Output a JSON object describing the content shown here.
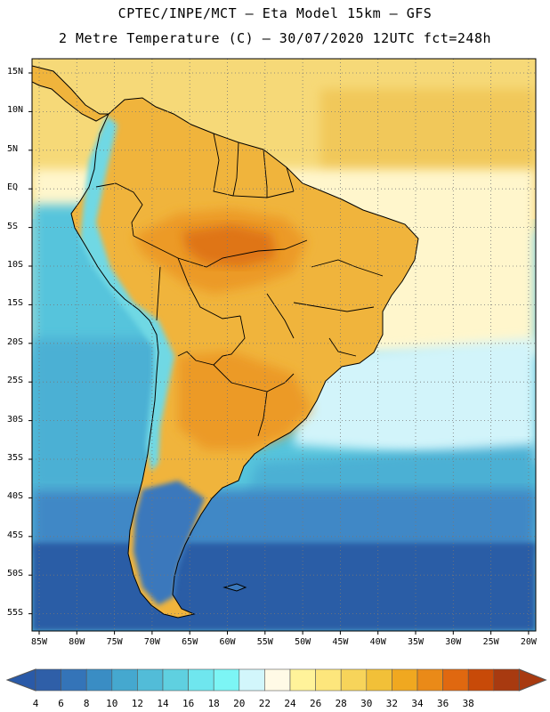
{
  "header": {
    "line1": "CPTEC/INPE/MCT –  Eta Model 15km – GFS",
    "line2": "2 Metre Temperature (C) – 30/07/2020 12UTC fct=248h"
  },
  "axes": {
    "lat_labels": [
      "15N",
      "10N",
      "5N",
      "EQ",
      "5S",
      "10S",
      "15S",
      "20S",
      "25S",
      "30S",
      "35S",
      "40S",
      "45S",
      "50S",
      "55S"
    ],
    "lon_labels": [
      "85W",
      "80W",
      "75W",
      "70W",
      "65W",
      "60W",
      "55W",
      "50W",
      "45W",
      "40W",
      "35W",
      "30W",
      "25W",
      "20W"
    ]
  },
  "colorbar": {
    "labels": [
      "4",
      "6",
      "8",
      "10",
      "12",
      "14",
      "16",
      "18",
      "20",
      "22",
      "24",
      "26",
      "28",
      "30",
      "32",
      "34",
      "36",
      "38"
    ],
    "under_color": "#2a5aa8",
    "over_color": "#a83a10",
    "colors": [
      "#2f5fa8",
      "#3474b8",
      "#3a8dc4",
      "#45a8cf",
      "#52bcd8",
      "#5fd0e0",
      "#6fe6ee",
      "#7cf5f5",
      "#d2f6fb",
      "#fffae6",
      "#fff39a",
      "#fde67c",
      "#f7d45a",
      "#f2c038",
      "#f0a820",
      "#ea8a18",
      "#e06810",
      "#c84a08",
      "#a83a10"
    ]
  },
  "map_colors": {
    "ocean_cold": "#2c5da6",
    "ocean_cool": "#3f88c6",
    "ocean_mid": "#4bb0d4",
    "ocean_light": "#56c4dc",
    "ocean_warm": "#d2f4fa",
    "ocean_warmer": "#fff6cc",
    "ocean_tropical": "#f6d978",
    "ocean_hot": "#f1c85a",
    "land_hot": "#ec9a28",
    "land_warm": "#f0b43c",
    "land_very_hot": "#df7416",
    "mountains": "#6fd8e4",
    "patagonia": "#3a78bc"
  },
  "legend_arrow_left": "◀",
  "legend_arrow_right": "▶"
}
